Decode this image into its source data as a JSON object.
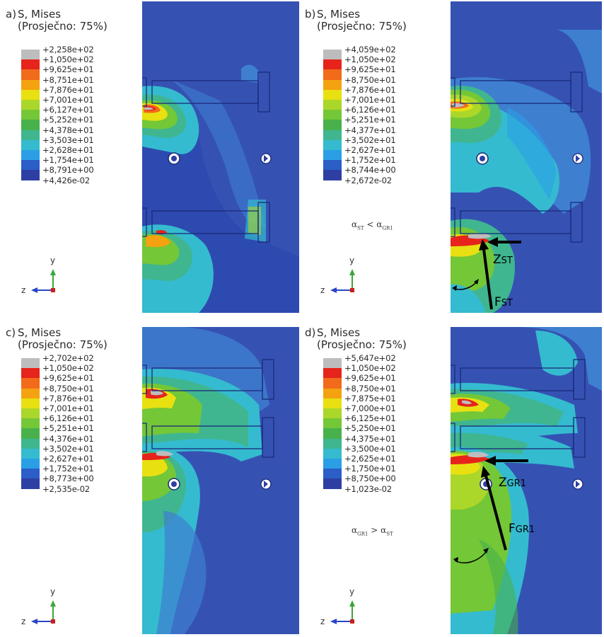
{
  "colors": [
    "#bdbdbd",
    "#e6241b",
    "#f26b1a",
    "#f4a20f",
    "#e8e011",
    "#abd62a",
    "#74c737",
    "#48b14b",
    "#3fb68f",
    "#35bbcf",
    "#2a9fe6",
    "#2b5ec7",
    "#2e3fa3"
  ],
  "legend_title": "S, Mises",
  "legend_sub": "(Prosječno: 75%)",
  "panels": [
    {
      "id": "a",
      "tag": "a)",
      "values": [
        "+2,258e+02",
        "+1,050e+02",
        "+9,625e+01",
        "+8,751e+01",
        "+7,876e+01",
        "+7,001e+01",
        "+6,127e+01",
        "+5,252e+01",
        "+4,378e+01",
        "+3,503e+01",
        "+2,628e+01",
        "+1,754e+01",
        "+8,791e+00",
        "+4,426e-02"
      ]
    },
    {
      "id": "b",
      "tag": "b)",
      "values": [
        "+4,059e+02",
        "+1,050e+02",
        "+9,625e+01",
        "+8,750e+01",
        "+7,876e+01",
        "+7,001e+01",
        "+6,126e+01",
        "+5,251e+01",
        "+4,377e+01",
        "+3,502e+01",
        "+2,627e+01",
        "+1,752e+01",
        "+8,744e+00",
        "+2,672e-02"
      ]
    },
    {
      "id": "c",
      "tag": "c)",
      "values": [
        "+2,702e+02",
        "+1,050e+02",
        "+9,625e+01",
        "+8,750e+01",
        "+7,876e+01",
        "+7,001e+01",
        "+6,126e+01",
        "+5,251e+01",
        "+4,376e+01",
        "+3,502e+01",
        "+2,627e+01",
        "+1,752e+01",
        "+8,773e+00",
        "+2,535e-02"
      ]
    },
    {
      "id": "d",
      "tag": "d)",
      "values": [
        "+5,647e+02",
        "+1,050e+02",
        "+9,625e+01",
        "+8,750e+01",
        "+7,875e+01",
        "+7,000e+01",
        "+6,125e+01",
        "+5,250e+01",
        "+4,375e+01",
        "+3,500e+01",
        "+2,625e+01",
        "+1,750e+01",
        "+8,750e+00",
        "+1,023e-02"
      ]
    }
  ],
  "axis": {
    "y": "y",
    "z": "z"
  },
  "notes": {
    "b_angle": {
      "a1": "α",
      "s1": "ST",
      "op": "<",
      "a2": "α",
      "s2": "GR1"
    },
    "b_force_z": {
      "main": "Z",
      "sub": "ST"
    },
    "b_force_f": {
      "main": "F",
      "sub": "ST"
    },
    "d_angle": {
      "a1": "α",
      "s1": "GR1",
      "op": ">",
      "a2": "α",
      "s2": "ST"
    },
    "d_force_z": {
      "main": "Z",
      "sub": "GR1"
    },
    "d_force_f": {
      "main": "F",
      "sub": "GR1"
    }
  }
}
